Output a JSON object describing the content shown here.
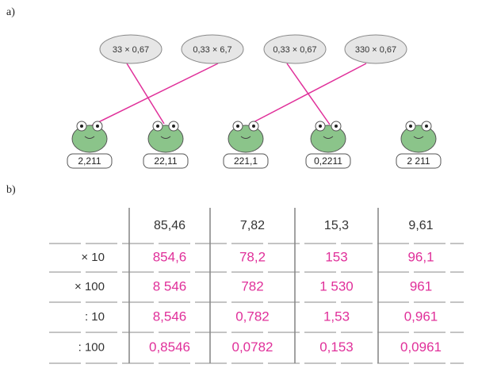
{
  "part_a": {
    "label": "a)",
    "pads": [
      "33 × 0,67",
      "0,33 × 6,7",
      "0,33 × 0,67",
      "330 × 0,67"
    ],
    "frogs": [
      "2,211",
      "22,11",
      "221,1",
      "0,2211",
      "2 211"
    ]
  },
  "part_b": {
    "label": "b)",
    "table": {
      "header": [
        "85,46",
        "7,82",
        "15,3",
        "9,61"
      ],
      "rows": [
        [
          "× 10",
          "854,6",
          "78,2",
          "153",
          "96,1"
        ],
        [
          "× 100",
          "8 546",
          "782",
          "1 530",
          "961"
        ],
        [
          ": 10",
          "8,546",
          "0,782",
          "1,53",
          "0,961"
        ],
        [
          ": 100",
          "0,8546",
          "0,0782",
          "0,153",
          "0,0961"
        ]
      ]
    }
  }
}
